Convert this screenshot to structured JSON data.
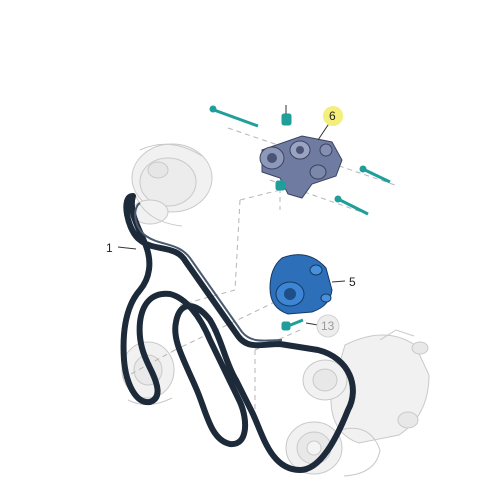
{
  "diagram": {
    "callouts": [
      {
        "id": "1",
        "label": "1",
        "highlight": false
      },
      {
        "id": "5",
        "label": "5",
        "highlight": false
      },
      {
        "id": "6",
        "label": "6",
        "highlight": true
      },
      {
        "id": "13",
        "label": "13",
        "highlight": false
      }
    ]
  },
  "colors": {
    "belt": "#1d2a3a",
    "water_pump": "#2d6fb8",
    "tensioner": "#6f7ba0",
    "bolt": "#1f9e9a",
    "ghost_part": "#c9c9c9",
    "highlight_circle": "#f3ef7a"
  }
}
